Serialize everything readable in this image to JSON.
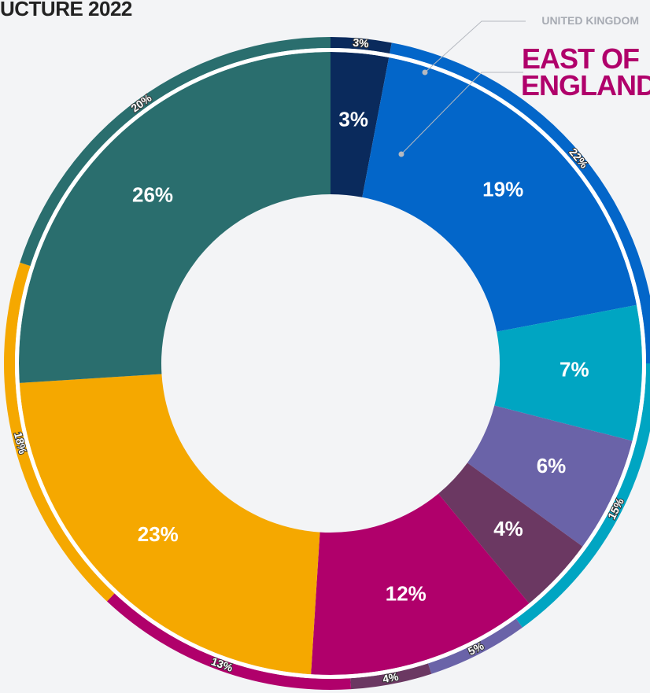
{
  "chart_data": {
    "type": "donut",
    "title": "UCTURE 2022",
    "colors": [
      "#0a2a5c",
      "#0366c9",
      "#00a5c2",
      "#6a63a8",
      "#6b3862",
      "#b0006b",
      "#f5a800",
      "#2a6e6e"
    ],
    "series": [
      {
        "name": "UNITED KINGDOM",
        "values": [
          3,
          22,
          15,
          5,
          4,
          13,
          18,
          20
        ],
        "value_labels": [
          "3%",
          "22%",
          "15%",
          "5%",
          "4%",
          "13%",
          "18%",
          "20%"
        ]
      },
      {
        "name": "EAST OF ENGLAND",
        "values": [
          3,
          19,
          7,
          6,
          4,
          12,
          23,
          26
        ],
        "value_labels": [
          "3%",
          "19%",
          "7%",
          "6%",
          "4%",
          "12%",
          "23%",
          "26%"
        ]
      }
    ]
  }
}
